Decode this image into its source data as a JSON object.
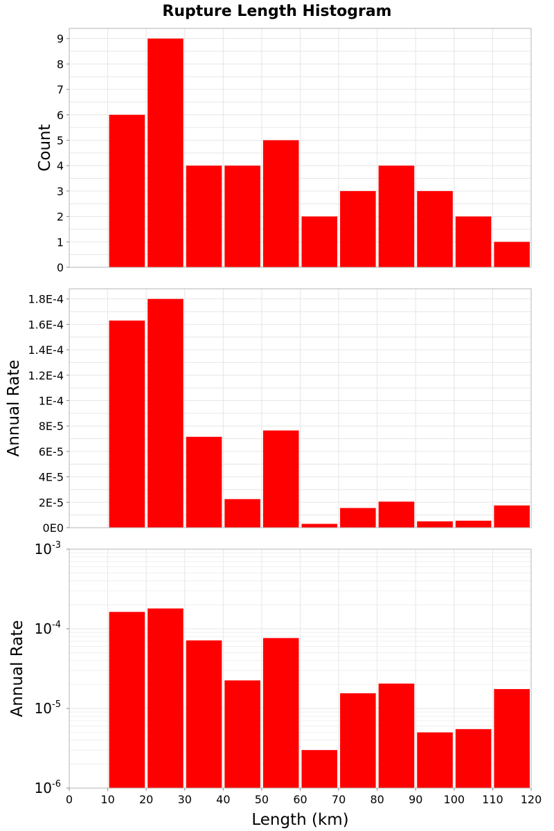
{
  "chart_data": [
    {
      "type": "bar",
      "title": "Rupture Length Histogram",
      "ylabel": "Count",
      "xlabel": "",
      "y_scale": "linear",
      "grid": true,
      "xlim": [
        0,
        120
      ],
      "ylim": [
        0,
        9.4
      ],
      "bin_width": 10,
      "bins": [
        10,
        20,
        30,
        40,
        50,
        60,
        70,
        80,
        90,
        100,
        110
      ],
      "values": [
        6,
        9,
        4,
        4,
        5,
        2,
        3,
        4,
        3,
        2,
        1
      ],
      "color": "#ff0000",
      "y_ticks": [
        0,
        1,
        2,
        3,
        4,
        5,
        6,
        7,
        8,
        9
      ],
      "y_tick_labels": [
        "0",
        "1",
        "2",
        "3",
        "4",
        "5",
        "6",
        "7",
        "8",
        "9"
      ]
    },
    {
      "type": "bar",
      "title": "",
      "ylabel": "Annual Rate",
      "xlabel": "",
      "y_scale": "linear",
      "grid": true,
      "xlim": [
        0,
        120
      ],
      "ylim": [
        0,
        0.000188
      ],
      "bin_width": 10,
      "bins": [
        10,
        20,
        30,
        40,
        50,
        60,
        70,
        80,
        90,
        100,
        110
      ],
      "values": [
        0.000163,
        0.00018,
        7.15e-05,
        2.25e-05,
        7.65e-05,
        3e-06,
        1.55e-05,
        2.05e-05,
        5e-06,
        5.5e-06,
        1.75e-05
      ],
      "color": "#ff0000",
      "y_ticks": [
        0,
        2e-05,
        4e-05,
        6e-05,
        8e-05,
        0.0001,
        0.00012,
        0.00014,
        0.00016,
        0.00018
      ],
      "y_tick_labels": [
        "0E0",
        "2E-5",
        "4E-5",
        "6E-5",
        "8E-5",
        "1E-4",
        "1.2E-4",
        "1.4E-4",
        "1.6E-4",
        "1.8E-4"
      ]
    },
    {
      "type": "bar",
      "title": "",
      "ylabel": "Annual Rate",
      "xlabel": "Length (km)",
      "y_scale": "log",
      "grid": true,
      "xlim": [
        0,
        120
      ],
      "ylim": [
        1e-06,
        0.001
      ],
      "bin_width": 10,
      "bins": [
        10,
        20,
        30,
        40,
        50,
        60,
        70,
        80,
        90,
        100,
        110
      ],
      "values": [
        0.000163,
        0.00018,
        7.15e-05,
        2.25e-05,
        7.65e-05,
        3e-06,
        1.55e-05,
        2.05e-05,
        5e-06,
        5.5e-06,
        1.75e-05
      ],
      "color": "#ff0000",
      "y_ticks": [
        1e-06,
        1e-05,
        0.0001,
        0.001
      ],
      "y_tick_labels": [
        {
          "base": "10",
          "exp": "-6"
        },
        {
          "base": "10",
          "exp": "-5"
        },
        {
          "base": "10",
          "exp": "-4"
        },
        {
          "base": "10",
          "exp": "-3"
        }
      ],
      "x_ticks": [
        0,
        10,
        20,
        30,
        40,
        50,
        60,
        70,
        80,
        90,
        100,
        110,
        120
      ],
      "x_tick_labels": [
        "0",
        "10",
        "20",
        "30",
        "40",
        "50",
        "60",
        "70",
        "80",
        "90",
        "100",
        "110",
        "120"
      ]
    }
  ]
}
